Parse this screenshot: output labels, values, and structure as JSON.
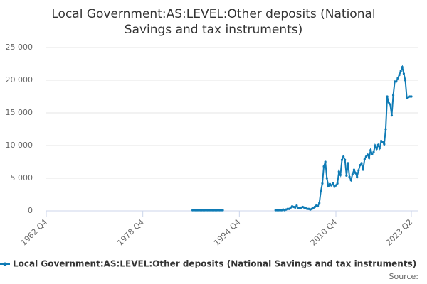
{
  "chart_data": {
    "type": "line",
    "title": [
      "Local Government:AS:LEVEL:Other deposits (National",
      "Savings and tax instruments)"
    ],
    "source": "Source:",
    "categories": [
      "1962 Q4",
      null,
      null,
      null,
      null,
      null,
      null,
      null,
      null,
      null,
      null,
      null,
      null,
      null,
      null,
      null,
      null,
      null,
      null,
      null,
      null,
      null,
      null,
      null,
      null,
      null,
      null,
      null,
      null,
      null,
      null,
      null,
      null,
      null,
      null,
      null,
      null,
      null,
      null,
      null,
      null,
      null,
      null,
      null,
      null,
      null,
      null,
      null,
      null,
      null,
      null,
      null,
      null,
      null,
      null,
      null,
      null,
      null,
      null,
      null,
      null,
      null,
      null,
      null,
      "1978 Q4",
      null,
      null,
      null,
      null,
      null,
      null,
      null,
      null,
      null,
      null,
      null,
      null,
      null,
      null,
      null,
      null,
      null,
      null,
      null,
      null,
      null,
      null,
      null,
      null,
      null,
      null,
      null,
      null,
      null,
      null,
      null,
      null,
      null,
      null,
      null,
      null,
      null,
      null,
      null,
      null,
      null,
      null,
      null,
      null,
      null,
      null,
      null,
      null,
      null,
      null,
      null,
      null,
      null,
      null,
      null,
      null,
      null,
      null,
      null,
      null,
      null,
      null,
      null,
      "1994 Q4",
      null,
      null,
      null,
      null,
      null,
      null,
      null,
      null,
      null,
      null,
      null,
      null,
      null,
      null,
      null,
      null,
      null,
      null,
      null,
      null,
      null,
      null,
      null,
      null,
      null,
      null,
      null,
      null,
      null,
      null,
      null,
      null,
      null,
      null,
      null,
      null,
      null,
      null,
      null,
      null,
      null,
      null,
      null,
      null,
      null,
      null,
      null,
      null,
      null,
      null,
      null,
      null,
      null,
      null,
      null,
      null,
      null,
      null,
      null,
      null,
      null,
      null,
      null,
      "2010 Q4",
      null,
      null,
      null,
      null,
      null,
      null,
      null,
      null,
      null,
      null,
      null,
      null,
      null,
      null,
      null,
      null,
      null,
      null,
      null,
      null,
      null,
      null,
      null,
      null,
      null,
      null,
      null,
      null,
      null,
      null,
      null,
      null,
      null,
      null,
      null,
      null,
      null,
      null,
      null,
      null,
      null,
      null,
      null,
      null,
      null,
      null,
      null,
      null,
      null,
      "2023 Q2"
    ],
    "series": [
      {
        "name": "Local Government:AS:LEVEL:Other deposits (National Savings and tax instruments)",
        "color": "#0f7bb5",
        "values": [
          null,
          null,
          null,
          null,
          null,
          null,
          null,
          null,
          null,
          null,
          null,
          null,
          null,
          null,
          null,
          null,
          null,
          null,
          null,
          null,
          null,
          null,
          null,
          null,
          null,
          null,
          null,
          null,
          null,
          null,
          null,
          null,
          null,
          null,
          null,
          null,
          null,
          null,
          null,
          null,
          null,
          null,
          null,
          null,
          null,
          null,
          null,
          null,
          null,
          null,
          null,
          null,
          null,
          null,
          null,
          null,
          null,
          null,
          null,
          null,
          null,
          null,
          null,
          null,
          null,
          null,
          null,
          null,
          null,
          null,
          null,
          null,
          null,
          null,
          null,
          null,
          null,
          null,
          null,
          null,
          null,
          null,
          null,
          null,
          null,
          null,
          null,
          null,
          null,
          null,
          null,
          null,
          null,
          null,
          null,
          null,
          null,
          100,
          100,
          100,
          100,
          100,
          100,
          100,
          100,
          100,
          100,
          100,
          100,
          100,
          100,
          100,
          100,
          100,
          100,
          100,
          100,
          100,
          null,
          null,
          null,
          null,
          null,
          null,
          null,
          null,
          null,
          null,
          null,
          null,
          null,
          null,
          null,
          null,
          null,
          null,
          null,
          null,
          null,
          null,
          null,
          null,
          null,
          null,
          null,
          null,
          null,
          null,
          null,
          null,
          null,
          null,
          100,
          100,
          100,
          100,
          100,
          200,
          100,
          200,
          300,
          300,
          500,
          700,
          600,
          500,
          800,
          400,
          400,
          500,
          600,
          500,
          400,
          300,
          300,
          200,
          300,
          400,
          600,
          800,
          700,
          1200,
          3000,
          4200,
          6800,
          7500,
          5000,
          3800,
          4100,
          3900,
          4200,
          3700,
          3900,
          4200,
          6000,
          5500,
          7800,
          8300,
          7800,
          5400,
          7300,
          5200,
          4700,
          5600,
          6300,
          5800,
          5200,
          6200,
          7000,
          7300,
          6300,
          7900,
          8300,
          8600,
          8100,
          9300,
          8700,
          9000,
          10000,
          9500,
          10100,
          9600,
          10700,
          10500,
          10200,
          12500,
          17500,
          16600,
          16300,
          14600,
          17700,
          19800,
          19800,
          20300,
          20800,
          21400,
          22000,
          21000,
          20000,
          17300,
          17400,
          17500,
          17500
        ]
      }
    ],
    "ylim": [
      0,
      25000
    ],
    "yticks": [
      0,
      {
        "value": 5000,
        "label": "5 000"
      },
      {
        "value": 10000,
        "label": "10 000"
      },
      {
        "value": 15000,
        "label": "15 000"
      },
      {
        "value": 20000,
        "label": "20 000"
      },
      {
        "value": 25000,
        "label": "25 000"
      }
    ],
    "grid": true
  }
}
